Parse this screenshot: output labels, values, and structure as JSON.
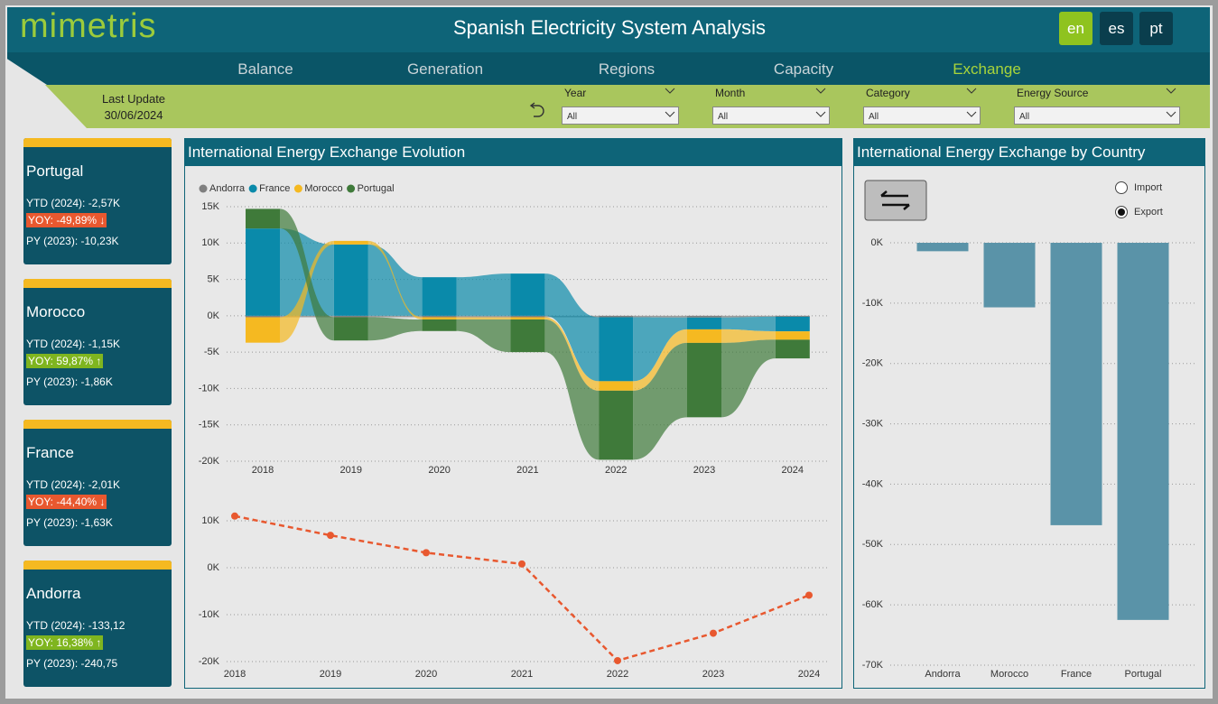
{
  "header": {
    "logo": "mimetris",
    "title": "Spanish Electricity System Analysis",
    "languages": [
      "en",
      "es",
      "pt"
    ],
    "tabs": [
      "Balance",
      "Generation",
      "Regions",
      "Capacity",
      "Exchange"
    ]
  },
  "filters": {
    "last_update_label": "Last Update",
    "last_update": "30/06/2024",
    "items": [
      {
        "label": "Year",
        "value": "All"
      },
      {
        "label": "Month",
        "value": "All"
      },
      {
        "label": "Category",
        "value": "All"
      },
      {
        "label": "Energy Source",
        "value": "All"
      }
    ]
  },
  "cards": [
    {
      "country": "Portugal",
      "ytd": "YTD (2024): -2,57K",
      "yoy": "YOY: -49,89% ↓",
      "yoy_color": "#e8582f",
      "py": "PY (2023): -10,23K"
    },
    {
      "country": "Morocco",
      "ytd": "YTD (2024): -1,15K",
      "yoy": "YOY: 59,87% ↑",
      "yoy_color": "#7fb51f",
      "py": "PY (2023): -1,86K"
    },
    {
      "country": "France",
      "ytd": "YTD (2024): -2,01K",
      "yoy": "YOY: -44,40% ↓",
      "yoy_color": "#e8582f",
      "py": "PY (2023): -1,63K"
    },
    {
      "country": "Andorra",
      "ytd": "YTD (2024): -133,12",
      "yoy": "YOY: 16,38% ↑",
      "yoy_color": "#7fb51f",
      "py": "PY (2023): -240,75"
    }
  ],
  "chart_data": [
    {
      "type": "ribbon",
      "title": "International Energy Exchange Evolution",
      "categories": [
        "2018",
        "2019",
        "2020",
        "2021",
        "2022",
        "2023",
        "2024"
      ],
      "series": [
        {
          "name": "Andorra",
          "color": "#7f7f7f",
          "values": [
            -200,
            -200,
            -200,
            -200,
            -200,
            -240,
            -133
          ]
        },
        {
          "name": "France",
          "color": "#0a8aaa",
          "values": [
            12000,
            9800,
            5300,
            5800,
            -8800,
            -1630,
            -2010
          ]
        },
        {
          "name": "Morocco",
          "color": "#f5b921",
          "values": [
            -3500,
            500,
            -300,
            -300,
            -1300,
            -1860,
            -1150
          ]
        },
        {
          "name": "Portugal",
          "color": "#3f7a3a",
          "values": [
            2700,
            -3200,
            -1600,
            -4500,
            -9500,
            -10230,
            -2570
          ]
        }
      ],
      "ylim": [
        -20000,
        15000
      ],
      "yticks": [
        {
          "value": 15000,
          "label": "15K"
        },
        {
          "value": 10000,
          "label": "10K"
        },
        {
          "value": 5000,
          "label": "5K"
        },
        {
          "value": 0,
          "label": "0K"
        },
        {
          "value": -5000,
          "label": "-5K"
        },
        {
          "value": -10000,
          "label": "-10K"
        },
        {
          "value": -15000,
          "label": "-15K"
        },
        {
          "value": -20000,
          "label": "-20K"
        }
      ],
      "grid": true,
      "legend": "top-left"
    },
    {
      "type": "line",
      "categories": [
        "2018",
        "2019",
        "2020",
        "2021",
        "2022",
        "2023",
        "2024"
      ],
      "values": [
        11000,
        6900,
        3200,
        800,
        -19800,
        -13960,
        -5860
      ],
      "color": "#e8582f",
      "ylim": [
        -20000,
        13000
      ],
      "yticks": [
        {
          "value": 10000,
          "label": "10K"
        },
        {
          "value": 0,
          "label": "0K"
        },
        {
          "value": -10000,
          "label": "-10K"
        },
        {
          "value": -20000,
          "label": "-20K"
        }
      ],
      "grid": true
    },
    {
      "type": "bar",
      "title": "International Energy Exchange by Country",
      "categories": [
        "Andorra",
        "Morocco",
        "France",
        "Portugal"
      ],
      "values": [
        -1400,
        -10700,
        -46800,
        -62500
      ],
      "color": "#5a93a8",
      "ylim": [
        -70000,
        0
      ],
      "yticks": [
        {
          "value": 0,
          "label": "0K"
        },
        {
          "value": -10000,
          "label": "-10K"
        },
        {
          "value": -20000,
          "label": "-20K"
        },
        {
          "value": -30000,
          "label": "-30K"
        },
        {
          "value": -40000,
          "label": "-40K"
        },
        {
          "value": -50000,
          "label": "-50K"
        },
        {
          "value": -60000,
          "label": "-60K"
        },
        {
          "value": -70000,
          "label": "-70K"
        }
      ],
      "grid": true,
      "toggle": [
        {
          "label": "Import",
          "selected": false
        },
        {
          "label": "Export",
          "selected": true
        }
      ]
    }
  ]
}
